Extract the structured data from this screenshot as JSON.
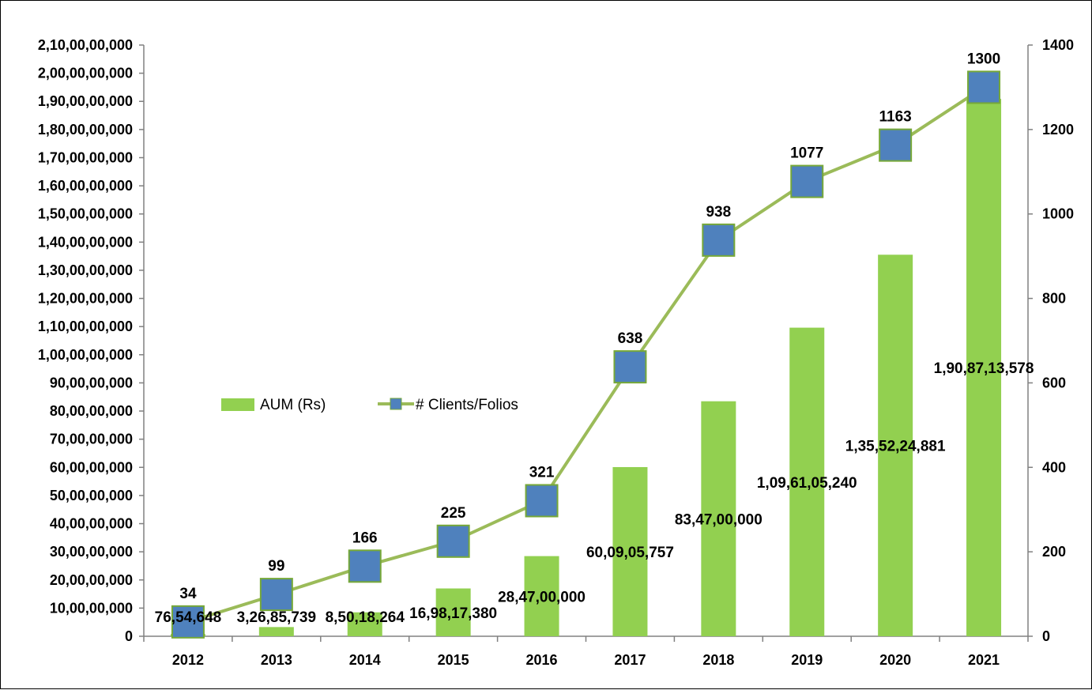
{
  "colors": {
    "bar": "#92d050",
    "line": "#9bbb59",
    "marker": "#4f81bd",
    "marker_border": "#76a838",
    "axis": "#808080"
  },
  "legend": {
    "position": "center-left",
    "bar_label": "AUM (Rs)",
    "line_label": "# Clients/Folios"
  },
  "chart_data": {
    "type": "bar",
    "combo": "bar + line on secondary axis",
    "categories": [
      "2012",
      "2013",
      "2014",
      "2015",
      "2016",
      "2017",
      "2018",
      "2019",
      "2020",
      "2021"
    ],
    "series": [
      {
        "name": "AUM (Rs)",
        "type": "bar",
        "axis": "primary",
        "values": [
          7654648,
          32685739,
          85018264,
          169817380,
          284700000,
          600905757,
          834700000,
          1096105240,
          1355224881,
          1908713578
        ],
        "data_labels": [
          "76,54,648",
          "3,26,85,739",
          "8,50,18,264",
          "16,98,17,380",
          "28,47,00,000",
          "60,09,05,757",
          "83,47,00,000",
          "1,09,61,05,240",
          "1,35,52,24,881",
          "1,90,87,13,578"
        ]
      },
      {
        "name": "# Clients/Folios",
        "type": "line",
        "axis": "secondary",
        "values": [
          34,
          99,
          166,
          225,
          321,
          638,
          938,
          1077,
          1163,
          1300
        ],
        "data_labels": [
          "34",
          "99",
          "166",
          "225",
          "321",
          "638",
          "938",
          "1077",
          "1163",
          "1300"
        ]
      }
    ],
    "ylim": [
      0,
      2100000000
    ],
    "y2lim": [
      0,
      1400
    ],
    "y_ticks": [
      "0",
      "10,00,00,000",
      "20,00,00,000",
      "30,00,00,000",
      "40,00,00,000",
      "50,00,00,000",
      "60,00,00,000",
      "70,00,00,000",
      "80,00,00,000",
      "90,00,00,000",
      "1,00,00,00,000",
      "1,10,00,00,000",
      "1,20,00,00,000",
      "1,30,00,00,000",
      "1,40,00,00,000",
      "1,50,00,00,000",
      "1,60,00,00,000",
      "1,70,00,00,000",
      "1,80,00,00,000",
      "1,90,00,00,000",
      "2,00,00,00,000",
      "2,10,00,00,000"
    ],
    "y2_ticks": [
      "0",
      "200",
      "400",
      "600",
      "800",
      "1000",
      "1200",
      "1400"
    ],
    "grid": false
  }
}
